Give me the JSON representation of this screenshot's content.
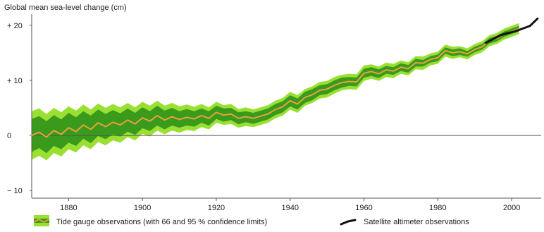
{
  "chart_data": {
    "type": "line",
    "ylabel": "Global mean sea-level change (cm)",
    "xlim": [
      1870,
      2008
    ],
    "ylim": [
      -11,
      21
    ],
    "x_ticks": [
      {
        "value": 1880,
        "label": "1880"
      },
      {
        "value": 1900,
        "label": "1900"
      },
      {
        "value": 1920,
        "label": "1920"
      },
      {
        "value": 1940,
        "label": "1940"
      },
      {
        "value": 1960,
        "label": "1960"
      },
      {
        "value": 1980,
        "label": "1980"
      },
      {
        "value": 2000,
        "label": "2000"
      }
    ],
    "y_ticks": [
      {
        "value": 20,
        "label": "+ 20"
      },
      {
        "value": 10,
        "label": "+ 10"
      },
      {
        "value": 0,
        "label": "0"
      },
      {
        "value": -10,
        "label": "− 10"
      }
    ],
    "grid": false,
    "zero_line": true,
    "legend_position": "bottom",
    "colors": {
      "ci95": "#99e033",
      "ci66": "#3a9a1c",
      "tide_line": "#e8a23a",
      "satellite_line": "#111111",
      "axis": "#555555"
    },
    "series": [
      {
        "name": "Tide gauge observations (with 66 and 95 % confidence limits)",
        "x": [
          1870,
          1872,
          1874,
          1876,
          1878,
          1880,
          1882,
          1884,
          1886,
          1888,
          1890,
          1892,
          1894,
          1896,
          1898,
          1900,
          1902,
          1904,
          1906,
          1908,
          1910,
          1912,
          1914,
          1916,
          1918,
          1920,
          1922,
          1924,
          1926,
          1928,
          1930,
          1932,
          1934,
          1936,
          1938,
          1940,
          1942,
          1944,
          1946,
          1948,
          1950,
          1952,
          1954,
          1956,
          1958,
          1960,
          1962,
          1964,
          1966,
          1968,
          1970,
          1972,
          1974,
          1976,
          1978,
          1980,
          1982,
          1984,
          1986,
          1988,
          1990,
          1992,
          1994,
          1996,
          1998,
          2000,
          2002
        ],
        "y": [
          0.0,
          0.6,
          -0.3,
          0.9,
          0.2,
          1.4,
          0.7,
          1.9,
          1.1,
          2.3,
          1.6,
          2.4,
          1.9,
          2.8,
          2.1,
          3.2,
          2.6,
          3.6,
          2.8,
          3.4,
          2.9,
          3.3,
          3.0,
          3.6,
          3.1,
          4.2,
          3.7,
          3.9,
          3.1,
          3.4,
          3.1,
          3.5,
          3.9,
          4.7,
          5.2,
          6.3,
          5.7,
          6.9,
          7.4,
          8.2,
          8.4,
          9.1,
          9.6,
          9.8,
          9.7,
          11.3,
          11.6,
          11.2,
          11.9,
          11.7,
          12.4,
          12.1,
          13.2,
          13.1,
          13.8,
          14.1,
          15.4,
          15.0,
          15.2,
          14.8,
          15.6,
          16.1,
          17.2,
          17.6,
          18.4,
          18.9,
          19.4
        ],
        "ci66": [
          3.0,
          2.9,
          2.9,
          2.8,
          2.7,
          2.7,
          2.6,
          2.5,
          2.5,
          2.4,
          2.3,
          2.2,
          2.1,
          2.1,
          2.0,
          1.9,
          1.8,
          1.8,
          1.7,
          1.6,
          1.5,
          1.5,
          1.4,
          1.3,
          1.3,
          1.2,
          1.2,
          1.1,
          1.1,
          1.0,
          1.0,
          1.0,
          1.0,
          1.0,
          1.0,
          1.0,
          1.0,
          1.0,
          1.0,
          0.9,
          0.9,
          0.9,
          0.9,
          0.8,
          0.8,
          0.8,
          0.8,
          0.8,
          0.7,
          0.7,
          0.7,
          0.7,
          0.7,
          0.6,
          0.6,
          0.6,
          0.6,
          0.6,
          0.6,
          0.5,
          0.5,
          0.5,
          0.5,
          0.5,
          0.5,
          0.5,
          0.5
        ],
        "ci95": [
          4.4,
          4.3,
          4.2,
          4.1,
          4.0,
          3.9,
          3.8,
          3.7,
          3.6,
          3.5,
          3.4,
          3.3,
          3.2,
          3.1,
          3.0,
          2.9,
          2.8,
          2.7,
          2.6,
          2.5,
          2.4,
          2.3,
          2.2,
          2.1,
          2.0,
          1.9,
          1.8,
          1.8,
          1.7,
          1.7,
          1.6,
          1.6,
          1.6,
          1.6,
          1.6,
          1.6,
          1.6,
          1.5,
          1.5,
          1.5,
          1.5,
          1.5,
          1.4,
          1.4,
          1.4,
          1.4,
          1.3,
          1.3,
          1.3,
          1.3,
          1.2,
          1.2,
          1.2,
          1.2,
          1.1,
          1.1,
          1.1,
          1.1,
          1.0,
          1.0,
          1.0,
          1.0,
          1.0,
          1.0,
          1.0,
          1.0,
          1.0
        ]
      },
      {
        "name": "Satellite altimeter observations",
        "x": [
          1993,
          1995,
          1997,
          1999,
          2001,
          2003,
          2005,
          2007
        ],
        "y": [
          16.8,
          17.5,
          18.2,
          18.6,
          18.9,
          19.4,
          19.9,
          21.2
        ]
      }
    ]
  }
}
